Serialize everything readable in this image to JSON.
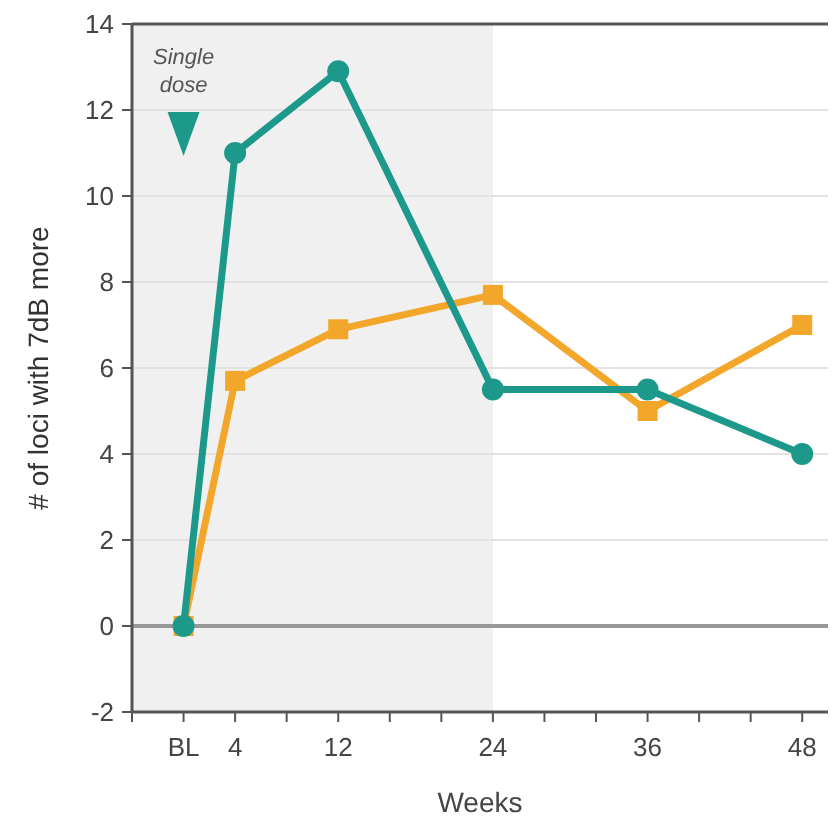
{
  "chart_data": {
    "type": "line",
    "xlabel": "Weeks",
    "ylabel": "# of loci with 7dB more",
    "x": [
      0,
      4,
      12,
      24,
      36,
      48
    ],
    "series": [
      {
        "color": "#f2a62a",
        "marker": "square",
        "values": [
          0,
          5.7,
          6.9,
          7.7,
          5.0,
          7.0
        ]
      },
      {
        "color": "#1c998b",
        "marker": "circle",
        "values": [
          0,
          11,
          12.9,
          5.5,
          5.5,
          4.0
        ]
      }
    ],
    "xlim": [
      -4,
      50
    ],
    "xticks": [
      {
        "value": -4,
        "label": null
      },
      {
        "value": 0,
        "label": "BL"
      },
      4,
      {
        "value": 8,
        "label": null
      },
      12,
      {
        "value": 16,
        "label": null
      },
      {
        "value": 20,
        "label": null
      },
      24,
      {
        "value": 28,
        "label": null
      },
      {
        "value": 32,
        "label": null
      },
      36,
      {
        "value": 40,
        "label": null
      },
      {
        "value": 44,
        "label": null
      },
      48
    ],
    "ylim": [
      -2,
      14
    ],
    "yticks": [
      -2,
      0,
      2,
      4,
      6,
      8,
      10,
      12,
      14
    ],
    "grid": "y",
    "line_style": "solid",
    "ref_lines": [
      {
        "axis": "y",
        "value": 0,
        "color": "#999999"
      }
    ],
    "bands": [
      {
        "axis": "x",
        "from": -4,
        "to": 24,
        "color": "#f0f0f0"
      }
    ],
    "annotations": [
      "Single dose"
    ]
  }
}
